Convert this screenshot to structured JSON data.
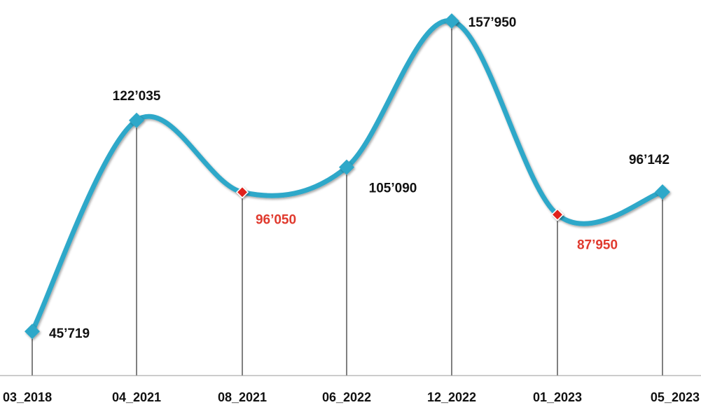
{
  "chart_data": {
    "type": "line",
    "categories": [
      "03_2018",
      "04_2021",
      "08_2021",
      "06_2022",
      "12_2022",
      "01_2023",
      "05_2023"
    ],
    "values": [
      45719,
      122035,
      96050,
      105090,
      157950,
      87950,
      96142
    ],
    "value_labels": [
      "45’719",
      "122’035",
      "96’050",
      "105’090",
      "157’950",
      "87’950",
      "96’142"
    ],
    "highlighted_points": [
      2,
      5
    ],
    "smooth": true,
    "grid": false,
    "legend": "none",
    "colors": {
      "line": "#2fa8c9",
      "marker": "#2fa8c9",
      "highlight_marker": "#e0231b",
      "label": "#111111",
      "highlight_label": "#e03a2e",
      "drop_line": "#000000",
      "axis": "#999999"
    }
  }
}
